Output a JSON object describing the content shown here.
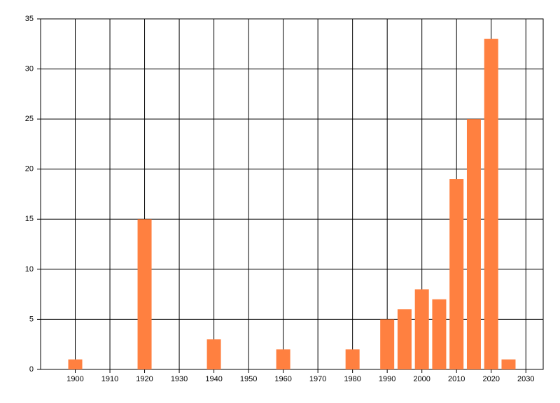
{
  "chart_data": {
    "type": "bar",
    "x": [
      1900,
      1920,
      1940,
      1960,
      1980,
      1990,
      1995,
      2000,
      2005,
      2010,
      2015,
      2020,
      2025
    ],
    "values": [
      1,
      15,
      3,
      2,
      2,
      5,
      6,
      8,
      7,
      19,
      25,
      33,
      1
    ],
    "color": "#ff8040",
    "xlim": [
      1890,
      2035
    ],
    "xticks": [
      1900,
      1910,
      1920,
      1930,
      1940,
      1950,
      1960,
      1970,
      1980,
      1990,
      2000,
      2010,
      2020,
      2030
    ],
    "ylim": [
      0,
      35
    ],
    "yticks": [
      0,
      5,
      10,
      15,
      20,
      25,
      30,
      35
    ],
    "grid": true
  }
}
